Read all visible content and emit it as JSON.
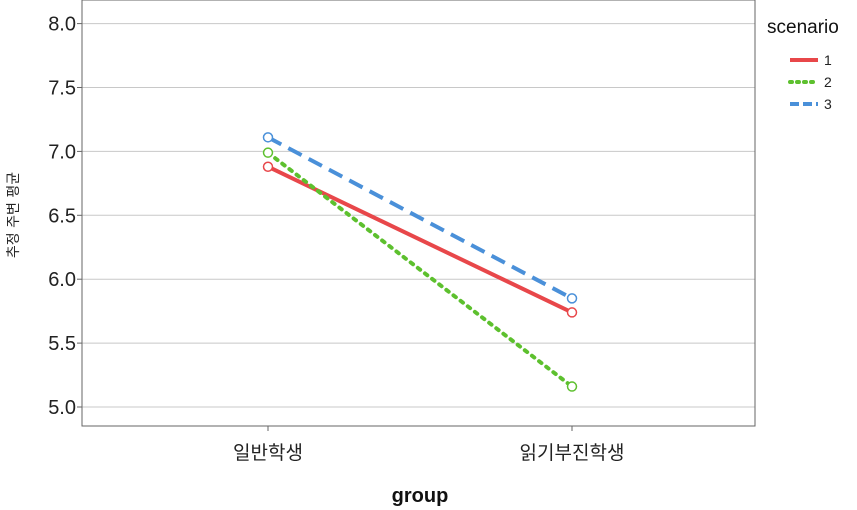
{
  "chart_data": {
    "type": "line",
    "title": "",
    "xlabel": "group",
    "ylabel": "추정 주변 평균",
    "categories": [
      "일반학생",
      "읽기부진학생"
    ],
    "ylim": [
      4.9,
      8.1
    ],
    "yticks": [
      5.0,
      5.5,
      6.0,
      6.5,
      7.0,
      7.5,
      8.0
    ],
    "ytick_labels": [
      "5.0",
      "5.5",
      "6.0",
      "6.5",
      "7.0",
      "7.5",
      "8.0"
    ],
    "grid": true,
    "legend": {
      "title": "scenario",
      "position": "right"
    },
    "series": [
      {
        "name": "1",
        "values": [
          6.88,
          5.74
        ],
        "color": "#e8474a",
        "style": "solid"
      },
      {
        "name": "2",
        "values": [
          6.99,
          5.16
        ],
        "color": "#5dc02e",
        "style": "dotted"
      },
      {
        "name": "3",
        "values": [
          7.11,
          5.85
        ],
        "color": "#4a90d9",
        "style": "dashed"
      }
    ]
  }
}
